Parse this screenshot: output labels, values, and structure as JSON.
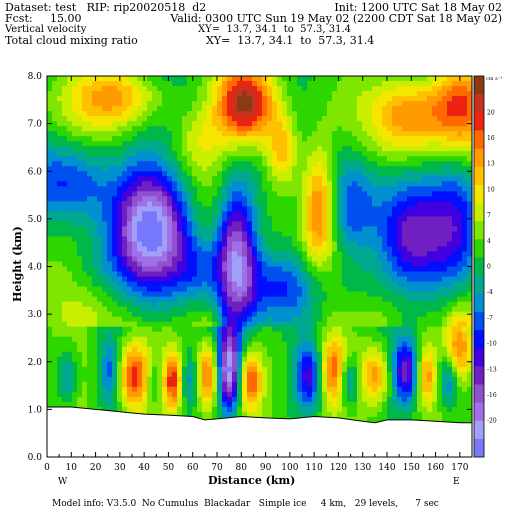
{
  "header": {
    "dataset": "Dataset: test   RIP: rip20020518  d2",
    "init": "Init: 1200 UTC Sat 18 May 02",
    "fcst": "Fcst:     15.00",
    "valid": "Valid: 0300 UTC Sun 19 May 02 (2200 CDT Sat 18 May 02)",
    "field1": "Vertical velocity",
    "xy1": "XY=  13.7, 34.1  to  57.3, 31.4",
    "field2": "Total cloud mixing ratio",
    "xy2": "XY=  13.7, 34.1  to  57.3, 31.4"
  },
  "footer": "Model info: V3.5.0  No Cumulus  Blackadar   Simple ice     4 km,   29 levels,      7 sec",
  "chart_data": {
    "type": "heatmap",
    "xlabel": "Distance  (km)",
    "ylabel": "Height (km)",
    "xlim": [
      0,
      175
    ],
    "ylim": [
      0,
      8
    ],
    "x_ticks": [
      "0",
      "10",
      "20",
      "30",
      "40",
      "50",
      "60",
      "70",
      "80",
      "90",
      "100",
      "110",
      "120",
      "130",
      "140",
      "150",
      "160",
      "170"
    ],
    "y_ticks": [
      "0.0",
      "1.0",
      "2.0",
      "3.0",
      "4.0",
      "5.0",
      "6.0",
      "7.0",
      "8.0"
    ],
    "x_end_labels": {
      "left": "W",
      "right": "E"
    },
    "colorbar": {
      "units": "cm s⁻¹",
      "labels": [
        "20",
        "16",
        "13",
        "10",
        "7",
        "4",
        "0",
        "-4",
        "-7",
        "-10",
        "-13",
        "-16",
        "-20"
      ],
      "colors": [
        "#8b3a16",
        "#c8321c",
        "#ee2211",
        "#ff6a00",
        "#ff9a00",
        "#ffc000",
        "#f5e600",
        "#c8ee00",
        "#7ee600",
        "#2ed600",
        "#00b84a",
        "#00a890",
        "#0090d0",
        "#0050f0",
        "#0010ff",
        "#4000e0",
        "#7020c0",
        "#9050d0",
        "#a070e8",
        "#a0a0f8",
        "#7878ff"
      ]
    },
    "terrain_km": [
      [
        0,
        1.05
      ],
      [
        10,
        1.05
      ],
      [
        20,
        1.0
      ],
      [
        30,
        0.95
      ],
      [
        40,
        0.9
      ],
      [
        50,
        0.88
      ],
      [
        60,
        0.85
      ],
      [
        65,
        0.78
      ],
      [
        70,
        0.8
      ],
      [
        80,
        0.85
      ],
      [
        90,
        0.82
      ],
      [
        100,
        0.8
      ],
      [
        110,
        0.85
      ],
      [
        120,
        0.82
      ],
      [
        130,
        0.75
      ],
      [
        135,
        0.72
      ],
      [
        140,
        0.78
      ],
      [
        150,
        0.78
      ],
      [
        160,
        0.75
      ],
      [
        170,
        0.72
      ],
      [
        175,
        0.72
      ]
    ],
    "features": [
      {
        "x": 82,
        "y": 7.4,
        "sx": 9,
        "sy": 0.6,
        "v": 20
      },
      {
        "x": 30,
        "y": 7.6,
        "sx": 14,
        "sy": 0.5,
        "v": 12
      },
      {
        "x": 170,
        "y": 7.4,
        "sx": 10,
        "sy": 0.7,
        "v": 16
      },
      {
        "x": 148,
        "y": 7.2,
        "sx": 10,
        "sy": 0.6,
        "v": 11
      },
      {
        "x": 97,
        "y": 6.4,
        "sx": 5,
        "sy": 0.6,
        "v": 11
      },
      {
        "x": 62,
        "y": 6.6,
        "sx": 8,
        "sy": 0.5,
        "v": 5
      },
      {
        "x": 112,
        "y": 5.3,
        "sx": 5,
        "sy": 0.9,
        "v": 14
      },
      {
        "x": 43,
        "y": 4.8,
        "sx": 11,
        "sy": 0.9,
        "v": -20
      },
      {
        "x": 78,
        "y": 4.2,
        "sx": 6,
        "sy": 1.1,
        "v": -20
      },
      {
        "x": 10,
        "y": 5.8,
        "sx": 12,
        "sy": 0.6,
        "v": -9
      },
      {
        "x": 125,
        "y": 5.2,
        "sx": 8,
        "sy": 0.8,
        "v": -9
      },
      {
        "x": 150,
        "y": 4.6,
        "sx": 10,
        "sy": 0.8,
        "v": -11
      },
      {
        "x": 170,
        "y": 5.0,
        "sx": 8,
        "sy": 1.0,
        "v": -10
      },
      {
        "x": 98,
        "y": 3.6,
        "sx": 12,
        "sy": 0.5,
        "v": -8
      },
      {
        "x": 62,
        "y": 3.9,
        "sx": 7,
        "sy": 0.5,
        "v": -6
      },
      {
        "x": 20,
        "y": 3.9,
        "sx": 10,
        "sy": 0.5,
        "v": -4
      },
      {
        "x": 130,
        "y": 3.6,
        "sx": 10,
        "sy": 0.5,
        "v": -4
      },
      {
        "x": 8,
        "y": 1.7,
        "sx": 3,
        "sy": 0.4,
        "v": -7
      },
      {
        "x": 26,
        "y": 1.8,
        "sx": 3,
        "sy": 0.5,
        "v": -8
      },
      {
        "x": 36,
        "y": 1.7,
        "sx": 5,
        "sy": 0.5,
        "v": 14
      },
      {
        "x": 44,
        "y": 1.6,
        "sx": 3,
        "sy": 0.4,
        "v": -6
      },
      {
        "x": 52,
        "y": 1.6,
        "sx": 3,
        "sy": 0.4,
        "v": 14
      },
      {
        "x": 58,
        "y": 1.6,
        "sx": 3,
        "sy": 0.4,
        "v": -7
      },
      {
        "x": 66,
        "y": 1.7,
        "sx": 3,
        "sy": 0.5,
        "v": 13
      },
      {
        "x": 75,
        "y": 1.8,
        "sx": 3,
        "sy": 0.6,
        "v": -20
      },
      {
        "x": 84,
        "y": 1.6,
        "sx": 3,
        "sy": 0.4,
        "v": 12
      },
      {
        "x": 108,
        "y": 1.7,
        "sx": 4,
        "sy": 0.5,
        "v": -12
      },
      {
        "x": 118,
        "y": 1.8,
        "sx": 4,
        "sy": 0.5,
        "v": 12
      },
      {
        "x": 124,
        "y": 1.6,
        "sx": 3,
        "sy": 0.4,
        "v": -9
      },
      {
        "x": 135,
        "y": 1.7,
        "sx": 4,
        "sy": 0.4,
        "v": 10
      },
      {
        "x": 148,
        "y": 1.8,
        "sx": 4,
        "sy": 0.5,
        "v": -14
      },
      {
        "x": 156,
        "y": 1.7,
        "sx": 3,
        "sy": 0.4,
        "v": 10
      },
      {
        "x": 165,
        "y": 1.6,
        "sx": 3,
        "sy": 0.4,
        "v": -9
      },
      {
        "x": 170,
        "y": 2.3,
        "sx": 4,
        "sy": 0.5,
        "v": 11
      }
    ]
  }
}
